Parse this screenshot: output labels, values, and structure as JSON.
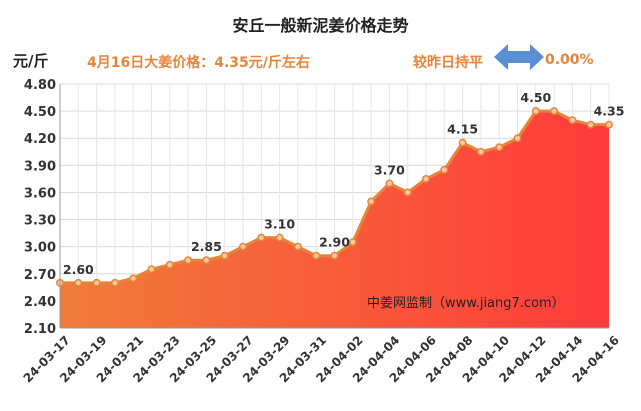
{
  "header": {
    "title": "安丘一般新泥姜价格走势",
    "unit": "元/斤",
    "price_note": "4月16日大姜价格：4.35元/斤左右",
    "compare_label": "较昨日持平",
    "change_value": "0.00%",
    "arrow_icon": "double-arrow-icon",
    "arrow_color": "#5b8fd4"
  },
  "watermark": "中姜网监制（www.jiang7.com）",
  "chart_data": {
    "type": "area",
    "ylim": [
      2.1,
      4.8
    ],
    "yticks": [
      "4.80",
      "4.50",
      "4.20",
      "3.90",
      "3.60",
      "3.30",
      "3.00",
      "2.70",
      "2.40",
      "2.10"
    ],
    "x": [
      "24-03-17",
      "24-03-18",
      "24-03-19",
      "24-03-20",
      "24-03-21",
      "24-03-22",
      "24-03-23",
      "24-03-24",
      "24-03-25",
      "24-03-26",
      "24-03-27",
      "24-03-28",
      "24-03-29",
      "24-03-30",
      "24-03-31",
      "24-04-01",
      "24-04-02",
      "24-04-03",
      "24-04-04",
      "24-04-05",
      "24-04-06",
      "24-04-07",
      "24-04-08",
      "24-04-09",
      "24-04-10",
      "24-04-11",
      "24-04-12",
      "24-04-13",
      "24-04-14",
      "24-04-15",
      "24-04-16"
    ],
    "xtick_labels": [
      "24-03-17",
      "24-03-19",
      "24-03-21",
      "24-03-23",
      "24-03-25",
      "24-03-27",
      "24-03-29",
      "24-03-31",
      "24-04-02",
      "24-04-04",
      "24-04-06",
      "24-04-08",
      "24-04-10",
      "24-04-12",
      "24-04-14",
      "24-04-16"
    ],
    "values": [
      2.6,
      2.6,
      2.6,
      2.6,
      2.65,
      2.75,
      2.8,
      2.85,
      2.85,
      2.9,
      3.0,
      3.1,
      3.1,
      3.0,
      2.9,
      2.9,
      3.05,
      3.5,
      3.7,
      3.6,
      3.75,
      3.85,
      4.15,
      4.05,
      4.1,
      4.2,
      4.5,
      4.5,
      4.4,
      4.35,
      4.35
    ],
    "data_labels": [
      {
        "index": 1,
        "text": "2.60"
      },
      {
        "index": 8,
        "text": "2.85"
      },
      {
        "index": 12,
        "text": "3.10"
      },
      {
        "index": 15,
        "text": "2.90"
      },
      {
        "index": 18,
        "text": "3.70"
      },
      {
        "index": 22,
        "text": "4.15"
      },
      {
        "index": 26,
        "text": "4.50"
      },
      {
        "index": 30,
        "text": "4.35"
      }
    ],
    "grid": true,
    "colors": {
      "line": "#e8843a",
      "fill_top": "#ff3b3b",
      "fill_bottom": "#f07c3a",
      "marker_fill": "#f6c9a3"
    }
  }
}
